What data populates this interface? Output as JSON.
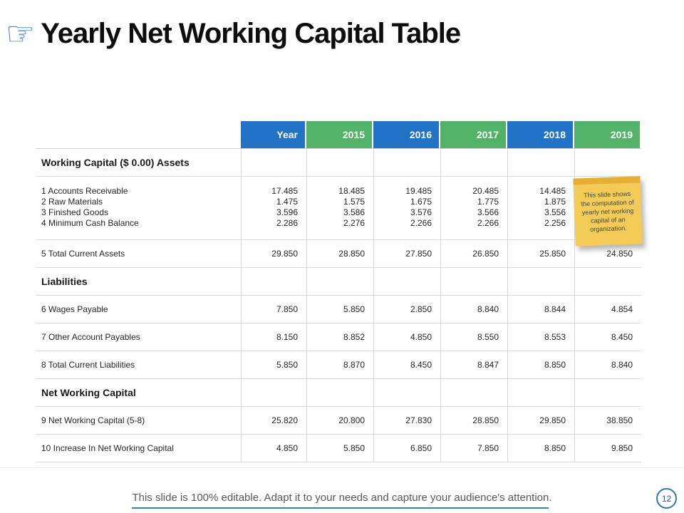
{
  "slide": {
    "title": "Yearly Net Working Capital Table",
    "footer_text": "This slide is 100% editable. Adapt it to your needs and capture your audience's attention.",
    "page_number": "12"
  },
  "icons": {
    "title_icon": "pointing-hand-icon",
    "title_icon_glyph": "☞"
  },
  "colors": {
    "header_blue": "#2272C8",
    "header_green": "#52B368",
    "note_yellow": "#F3CC58",
    "note_strip": "#E6AF33",
    "footer_line": "#4181A9",
    "icon_blue": "#2E75D4"
  },
  "sticky_note": {
    "text": "This slide shows the computation of yearly net working capital of an organization."
  },
  "table": {
    "header": [
      {
        "label": "Year",
        "color": "blue"
      },
      {
        "label": "2015",
        "color": "green"
      },
      {
        "label": "2016",
        "color": "blue"
      },
      {
        "label": "2017",
        "color": "green"
      },
      {
        "label": "2018",
        "color": "blue"
      },
      {
        "label": "2019",
        "color": "green"
      }
    ],
    "rows": [
      {
        "type": "section",
        "label": "Working Capital ($ 0.00) Assets",
        "values": [
          "",
          "",
          "",
          "",
          "",
          ""
        ]
      },
      {
        "type": "multi",
        "labels": [
          "1 Accounts Receivable",
          "2 Raw Materials",
          "3 Finished Goods",
          "4 Minimum Cash Balance"
        ],
        "values": [
          [
            "17.485",
            "1.475",
            "3.596",
            "2.286"
          ],
          [
            "18.485",
            "1.575",
            "3.586",
            "2.276"
          ],
          [
            "19.485",
            "1.675",
            "3.576",
            "2.266"
          ],
          [
            "20.485",
            "1.775",
            "3.566",
            "2.266"
          ],
          [
            "14.485",
            "1.875",
            "3.556",
            "2.256"
          ],
          [
            "",
            "",
            "",
            ""
          ]
        ]
      },
      {
        "type": "item",
        "label": "5 Total Current Assets",
        "values": [
          "29.850",
          "28.850",
          "27.850",
          "26.850",
          "25.850",
          "24.850"
        ]
      },
      {
        "type": "section",
        "label": "Liabilities",
        "values": [
          "",
          "",
          "",
          "",
          "",
          ""
        ]
      },
      {
        "type": "item",
        "label": "6 Wages Payable",
        "values": [
          "7.850",
          "5.850",
          "2.850",
          "8.840",
          "8.844",
          "4.854"
        ]
      },
      {
        "type": "item",
        "label": "7 Other Account Payables",
        "values": [
          "8.150",
          "8.852",
          "4.850",
          "8.550",
          "8.553",
          "8.450"
        ]
      },
      {
        "type": "item",
        "label": "8 Total Current Liabilities",
        "values": [
          "5.850",
          "8.870",
          "8.450",
          "8.847",
          "8.850",
          "8.840"
        ]
      },
      {
        "type": "section",
        "label": "Net Working Capital",
        "values": [
          "",
          "",
          "",
          "",
          "",
          ""
        ]
      },
      {
        "type": "item",
        "label": "9 Net Working Capital (5-8)",
        "values": [
          "25.820",
          "20.800",
          "27.830",
          "28.850",
          "29.850",
          "38.850"
        ]
      },
      {
        "type": "item",
        "label": "10 Increase In Net Working Capital",
        "values": [
          "4.850",
          "5.850",
          "6.850",
          "7.850",
          "8.850",
          "9.850"
        ]
      }
    ]
  }
}
